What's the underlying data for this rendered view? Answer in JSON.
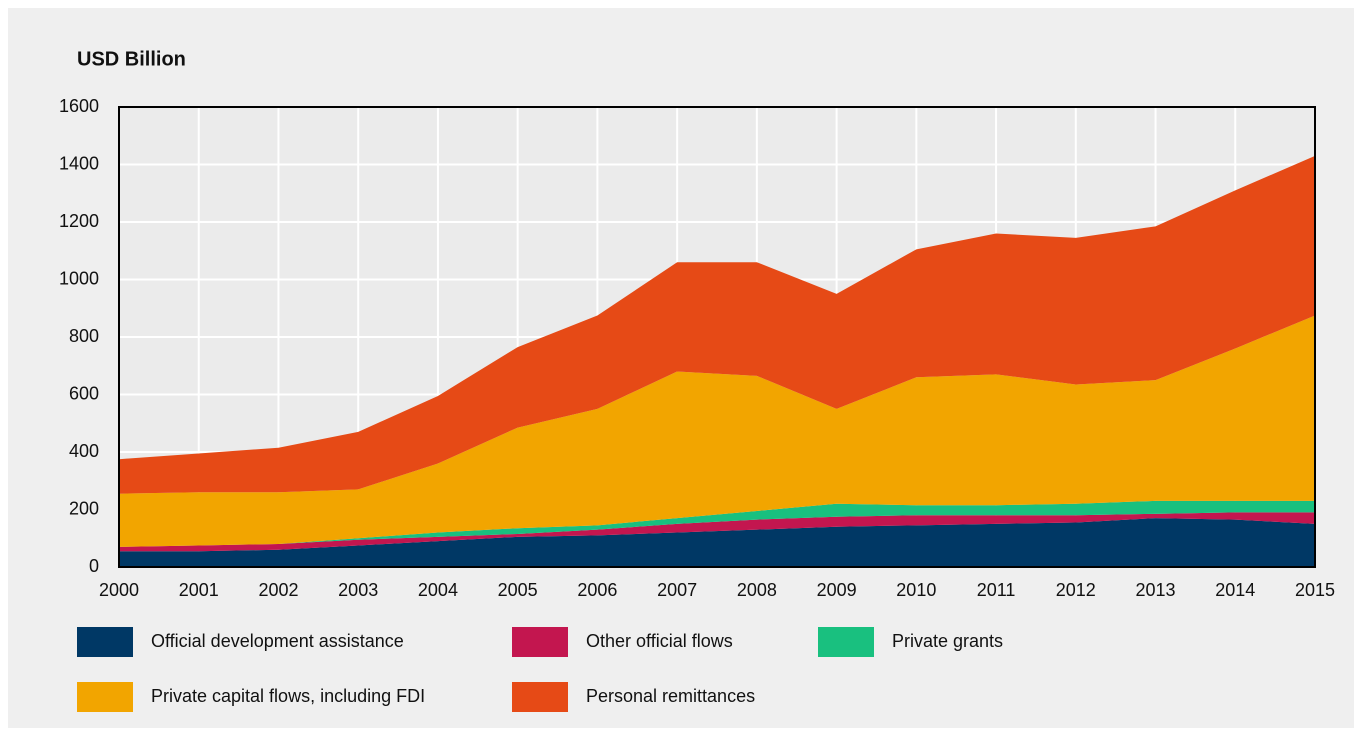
{
  "chart_data": {
    "type": "stacked_area",
    "title": "USD Billion",
    "x": [
      2000,
      2001,
      2002,
      2003,
      2004,
      2005,
      2006,
      2007,
      2008,
      2009,
      2010,
      2011,
      2012,
      2013,
      2014,
      2015
    ],
    "xlim": [
      2000,
      2015
    ],
    "xticks": [
      2000,
      2001,
      2002,
      2003,
      2004,
      2005,
      2006,
      2007,
      2008,
      2009,
      2010,
      2011,
      2012,
      2013,
      2014,
      2015
    ],
    "ylim": [
      0,
      1600
    ],
    "yticks": [
      0,
      200,
      400,
      600,
      800,
      1000,
      1200,
      1400,
      1600
    ],
    "grid": true,
    "series": [
      {
        "name": "Official development assistance",
        "color": "#003865",
        "values": [
          55,
          55,
          60,
          75,
          90,
          105,
          110,
          120,
          130,
          140,
          145,
          150,
          155,
          170,
          165,
          150
        ]
      },
      {
        "name": "Other official flows",
        "color": "#c3164f",
        "values": [
          15,
          20,
          20,
          20,
          15,
          10,
          20,
          30,
          35,
          35,
          35,
          30,
          25,
          15,
          25,
          40
        ]
      },
      {
        "name": "Private grants",
        "color": "#19c07f",
        "values": [
          0,
          0,
          0,
          5,
          15,
          20,
          15,
          20,
          30,
          45,
          35,
          35,
          40,
          45,
          40,
          40
        ]
      },
      {
        "name": "Private capital flows, including FDI",
        "color": "#f2a500",
        "values": [
          185,
          185,
          180,
          170,
          240,
          350,
          405,
          510,
          470,
          330,
          445,
          455,
          415,
          420,
          530,
          645
        ]
      },
      {
        "name": "Personal remittances",
        "color": "#e64a16",
        "values": [
          120,
          135,
          155,
          200,
          235,
          280,
          325,
          380,
          395,
          400,
          445,
          490,
          510,
          535,
          550,
          555
        ]
      }
    ]
  }
}
